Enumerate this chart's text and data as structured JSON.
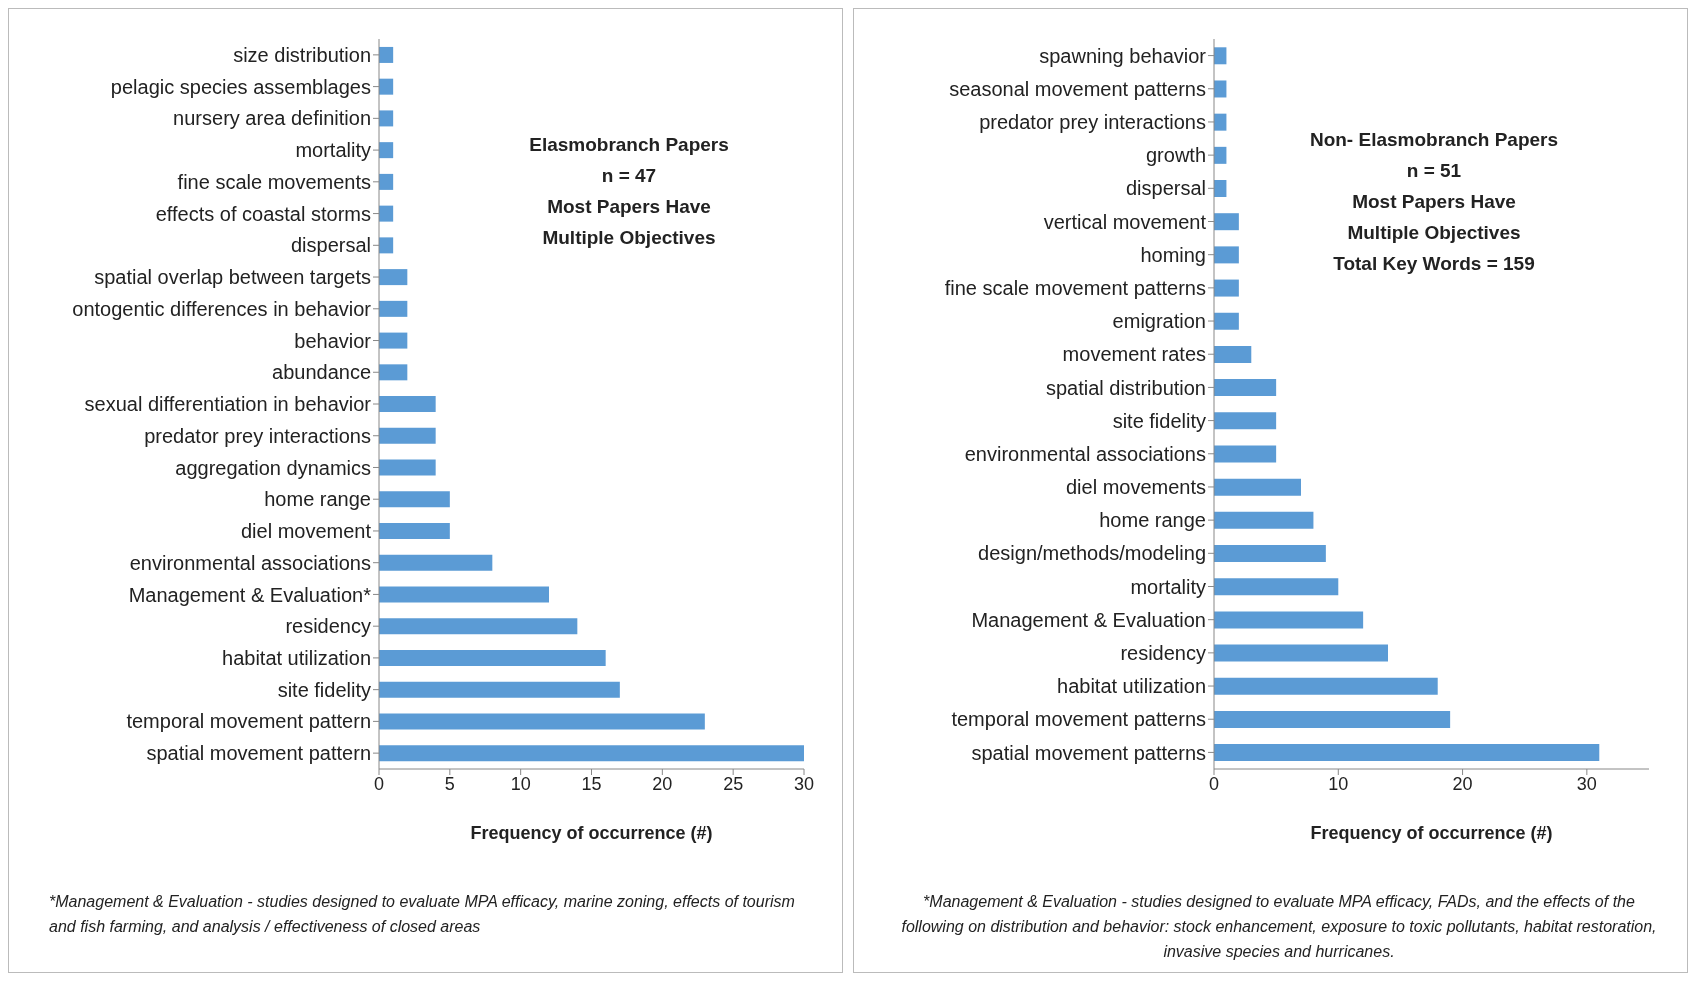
{
  "chart_data": [
    {
      "type": "bar",
      "orientation": "horizontal",
      "color": "#5b9bd5",
      "xlabel": "Frequency of occurrence (#)",
      "xlim": [
        0,
        30
      ],
      "xticks": [
        0,
        5,
        10,
        15,
        20,
        25,
        30
      ],
      "categories": [
        "size distribution",
        "pelagic species assemblages",
        "nursery area definition",
        "mortality",
        "fine scale movements",
        "effects of coastal storms",
        "dispersal",
        "spatial overlap between targets",
        "ontogentic differences in behavior",
        "behavior",
        "abundance",
        "sexual differentiation in behavior",
        "predator prey interactions",
        "aggregation dynamics",
        "home range",
        "diel movement",
        "environmental associations",
        "Management & Evaluation*",
        "residency",
        "habitat utilization",
        "site fidelity",
        "temporal movement pattern",
        "spatial movement pattern"
      ],
      "values": [
        1,
        1,
        1,
        1,
        1,
        1,
        1,
        2,
        2,
        2,
        2,
        4,
        4,
        4,
        5,
        5,
        8,
        12,
        14,
        16,
        17,
        23,
        30
      ],
      "annotations": [
        "Elasmobranch  Papers",
        "n = 47",
        "Most Papers Have",
        "Multiple Objectives",
        "*Management & Evaluation - studies designed to evaluate MPA efficacy, marine zoning, effects of tourism and fish farming, and analysis / effectiveness of closed areas"
      ]
    },
    {
      "type": "bar",
      "orientation": "horizontal",
      "color": "#5b9bd5",
      "xlabel": "Frequency of occurrence (#)",
      "xlim": [
        0,
        35
      ],
      "xticks": [
        0,
        10,
        20,
        30
      ],
      "categories": [
        "spawning behavior",
        "seasonal movement patterns",
        "predator prey interactions",
        "growth",
        "dispersal",
        "vertical movement",
        "homing",
        "fine scale movement patterns",
        "emigration",
        "movement rates",
        "spatial distribution",
        "site fidelity",
        "environmental associations",
        "diel movements",
        "home range",
        "design/methods/modeling",
        "mortality",
        "Management & Evaluation",
        "residency",
        "habitat utilization",
        "temporal movement patterns",
        "spatial movement patterns"
      ],
      "values": [
        1,
        1,
        1,
        1,
        1,
        2,
        2,
        2,
        2,
        3,
        5,
        5,
        5,
        7,
        8,
        9,
        10,
        12,
        14,
        18,
        19,
        31
      ],
      "annotations": [
        "Non- Elasmobranch  Papers",
        "n = 51",
        "Most Papers Have",
        "Multiple Objectives",
        "Total Key Words = 159",
        "*Management & Evaluation - studies designed to evaluate MPA efficacy, FADs, and the effects of the following on distribution and behavior: stock enhancement, exposure to toxic pollutants, habitat restoration, invasive species and hurricanes."
      ]
    }
  ]
}
